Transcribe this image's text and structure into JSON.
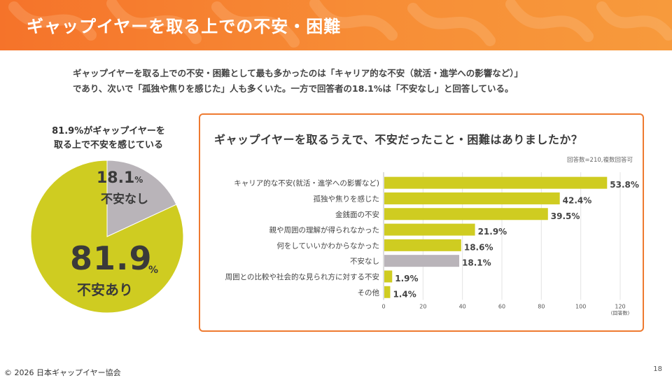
{
  "header": {
    "title": "ギャップイヤーを取る上での不安・困難"
  },
  "lead": {
    "line1": "ギャップイヤーを取る上での不安・困難として最も多かったのは「キャリア的な不安（就活・進学への影響など）」",
    "line2": "であり、次いで「孤独や焦りを感じた」人も多くいた。一方で回答者の18.1%は「不安なし」と回答している。"
  },
  "pie": {
    "caption_line1": "81.9%がギャップイヤーを",
    "caption_line2": "取る上で不安を感じている",
    "slices": [
      {
        "label": "不安なし",
        "value": 18.1,
        "color": "#b9b4b9"
      },
      {
        "label": "不安あり",
        "value": 81.9,
        "color": "#cfcc21"
      }
    ],
    "small_value": "18.1",
    "small_unit": "%",
    "small_label": "不安なし",
    "big_value": "81.9",
    "big_unit": "%",
    "big_label": "不安あり"
  },
  "chart_data": {
    "type": "bar",
    "orientation": "horizontal",
    "title": "ギャップイヤーを取るうえで、不安だったこと・困難はありましたか？",
    "note": "回答数=210,複数回答可",
    "categories": [
      "キャリア的な不安(就活・進学への影響など)",
      "孤独や焦りを感じた",
      "金銭面の不安",
      "親や周囲の理解が得られなかった",
      "何をしていいかわからなかった",
      "不安なし",
      "周囲との比較や社会的な見られ方に対する不安",
      "その他"
    ],
    "counts": [
      113,
      89,
      83,
      46,
      39,
      38,
      4,
      3
    ],
    "value_labels": [
      "53.8%",
      "42.4%",
      "39.5%",
      "21.9%",
      "18.6%",
      "18.1%",
      "1.9%",
      "1.4%"
    ],
    "highlight_index": 5,
    "bar_color": "#cfcc21",
    "highlight_color": "#b9b4b9",
    "xlim": [
      0,
      120
    ],
    "xticks": [
      0,
      20,
      40,
      60,
      80,
      100,
      120
    ],
    "xunit": "(回答数)",
    "grid": true
  },
  "footer": {
    "copyright": "© 2026 日本ギャップイヤー協会",
    "page": "18"
  }
}
